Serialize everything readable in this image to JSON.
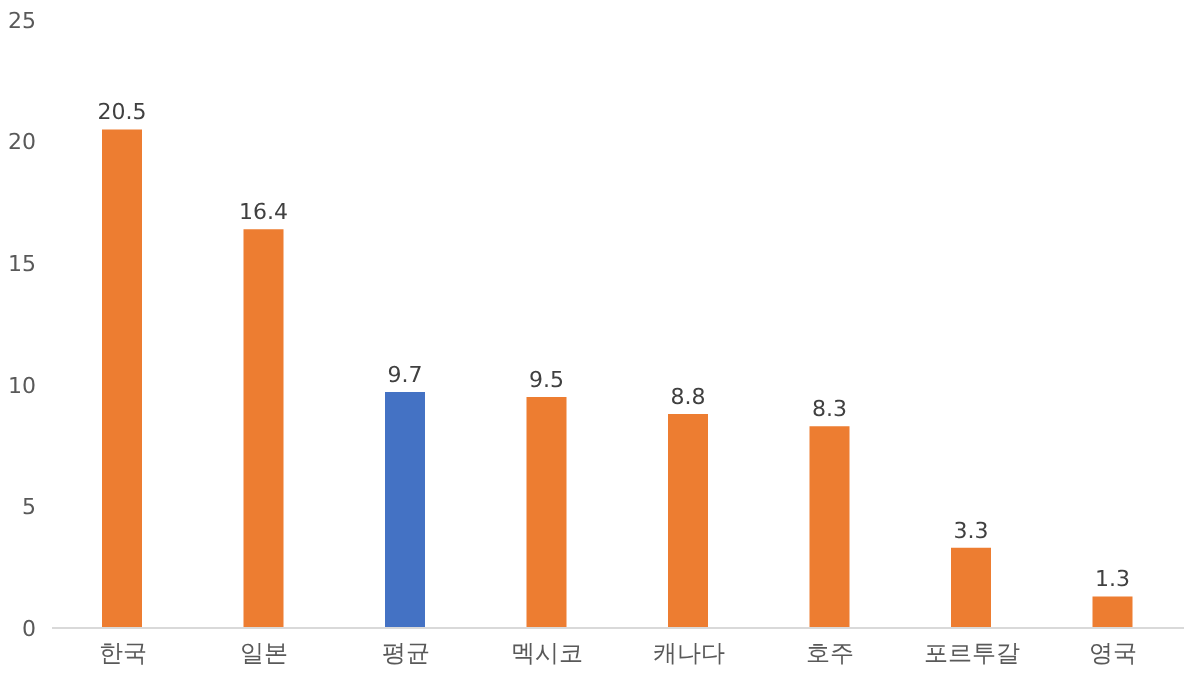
{
  "chart_data": {
    "type": "bar",
    "categories": [
      "한국",
      "일본",
      "평균",
      "멕시코",
      "캐나다",
      "호주",
      "포르투갈",
      "영국"
    ],
    "values": [
      20.5,
      16.4,
      9.7,
      9.5,
      8.8,
      8.3,
      3.3,
      1.3
    ],
    "colors": [
      "#ed7d31",
      "#ed7d31",
      "#4472c4",
      "#ed7d31",
      "#ed7d31",
      "#ed7d31",
      "#ed7d31",
      "#ed7d31"
    ],
    "ylim": [
      0,
      25
    ],
    "yticks": [
      0,
      5,
      10,
      15,
      20,
      25
    ],
    "grid": false,
    "data_labels": true
  }
}
